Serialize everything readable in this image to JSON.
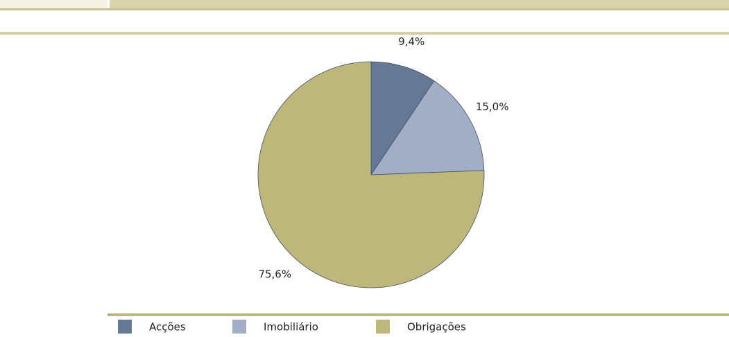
{
  "chart_data": {
    "type": "pie",
    "categories": [
      "Acções",
      "Imobiliário",
      "Obrigações"
    ],
    "values": [
      9.4,
      15.0,
      75.6
    ],
    "value_labels": [
      "9,4%",
      "15,0%",
      "75,6%"
    ],
    "colors": [
      "#667894",
      "#a3adc6",
      "#bdb77a"
    ],
    "legend": "bottom"
  }
}
